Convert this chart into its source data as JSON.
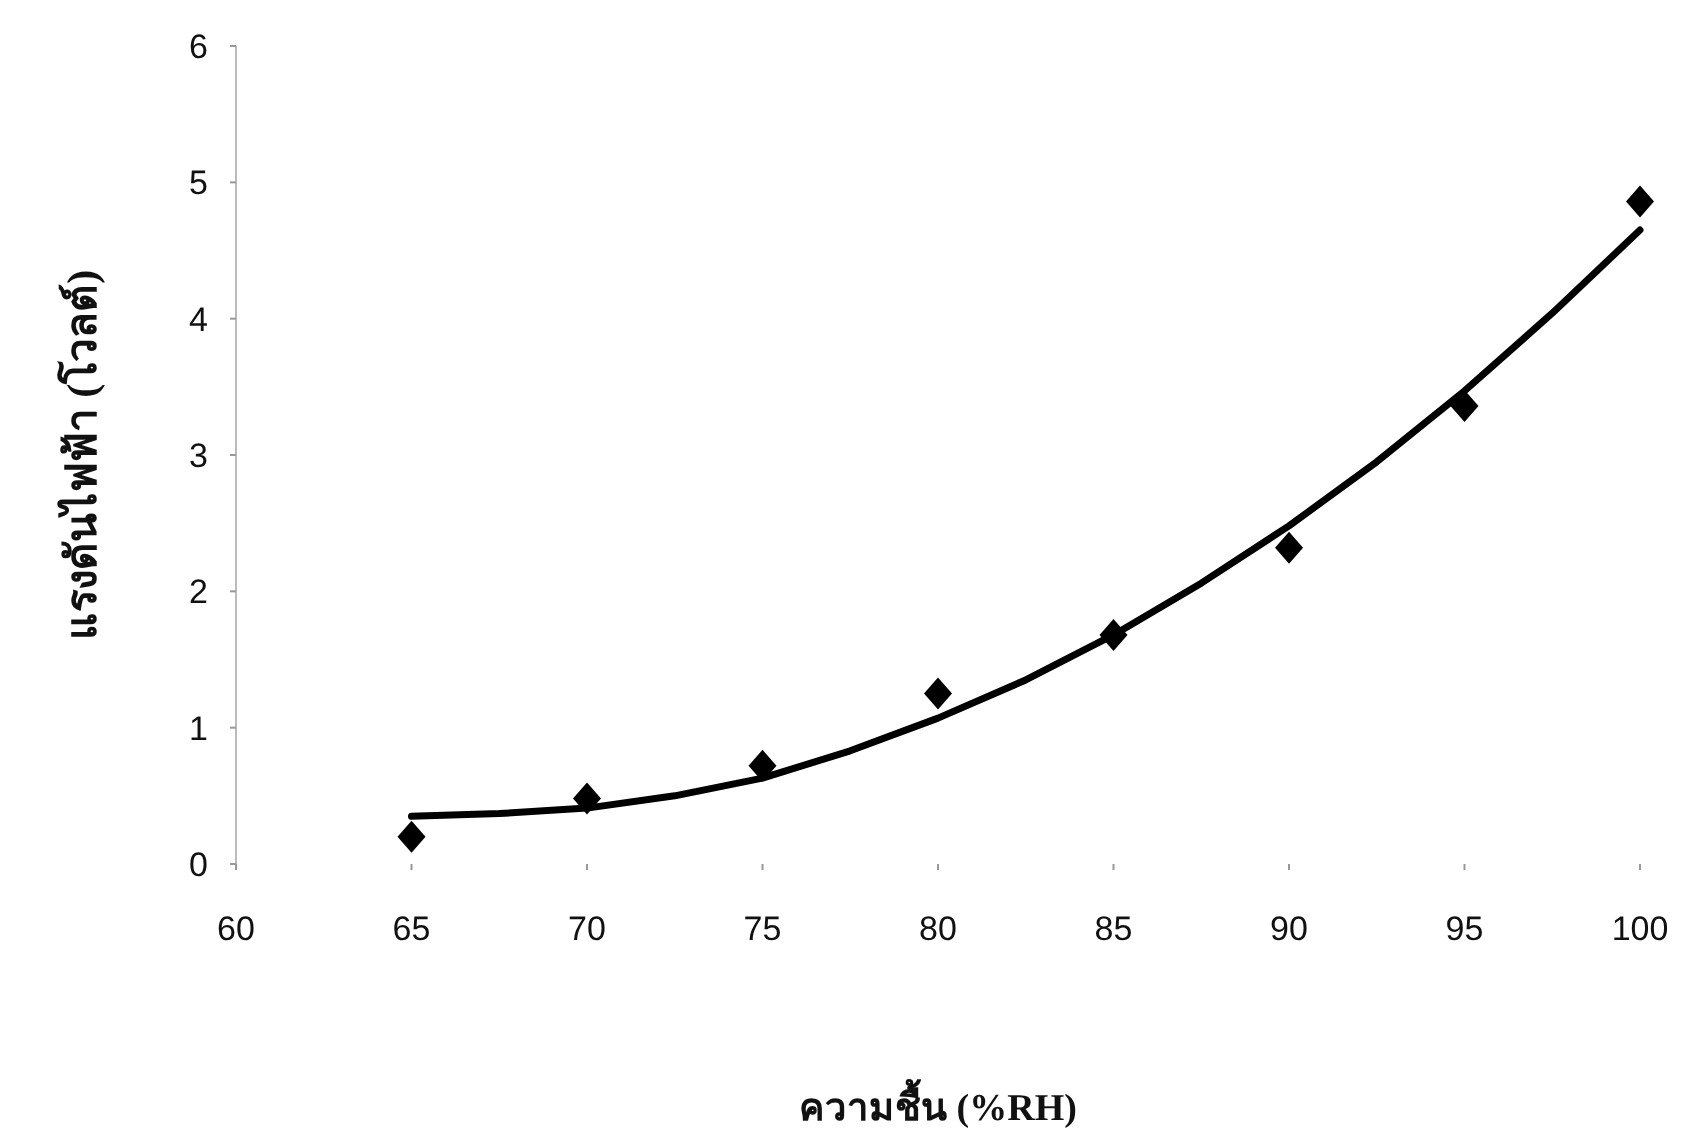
{
  "chart_data": {
    "type": "scatter",
    "xlabel": "ความชื้น (%RH)",
    "ylabel": "แรงดันไฟฟ้า (โวลต์)",
    "x": [
      65,
      70,
      75,
      80,
      85,
      90,
      95,
      100
    ],
    "series": [
      {
        "marker": "diamond",
        "color": "#000000",
        "values": [
          0.2,
          0.48,
          0.72,
          1.25,
          1.68,
          2.32,
          3.36,
          4.86
        ]
      },
      {
        "type": "line",
        "marker": "none",
        "color": "#000000",
        "x": [
          65,
          67.5,
          70,
          72.5,
          75,
          77.5,
          80,
          82.5,
          85,
          87.5,
          90,
          92.5,
          95,
          97.5,
          100
        ],
        "values": [
          0.35,
          0.37,
          0.41,
          0.5,
          0.63,
          0.83,
          1.07,
          1.35,
          1.68,
          2.06,
          2.48,
          2.95,
          3.47,
          4.04,
          4.65
        ]
      }
    ],
    "xlim": [
      60,
      100
    ],
    "xticks": [
      60,
      65,
      70,
      75,
      80,
      85,
      90,
      95,
      100
    ],
    "ylim": [
      0,
      6
    ],
    "yticks": [
      0,
      1,
      2,
      3,
      4,
      5,
      6
    ]
  }
}
